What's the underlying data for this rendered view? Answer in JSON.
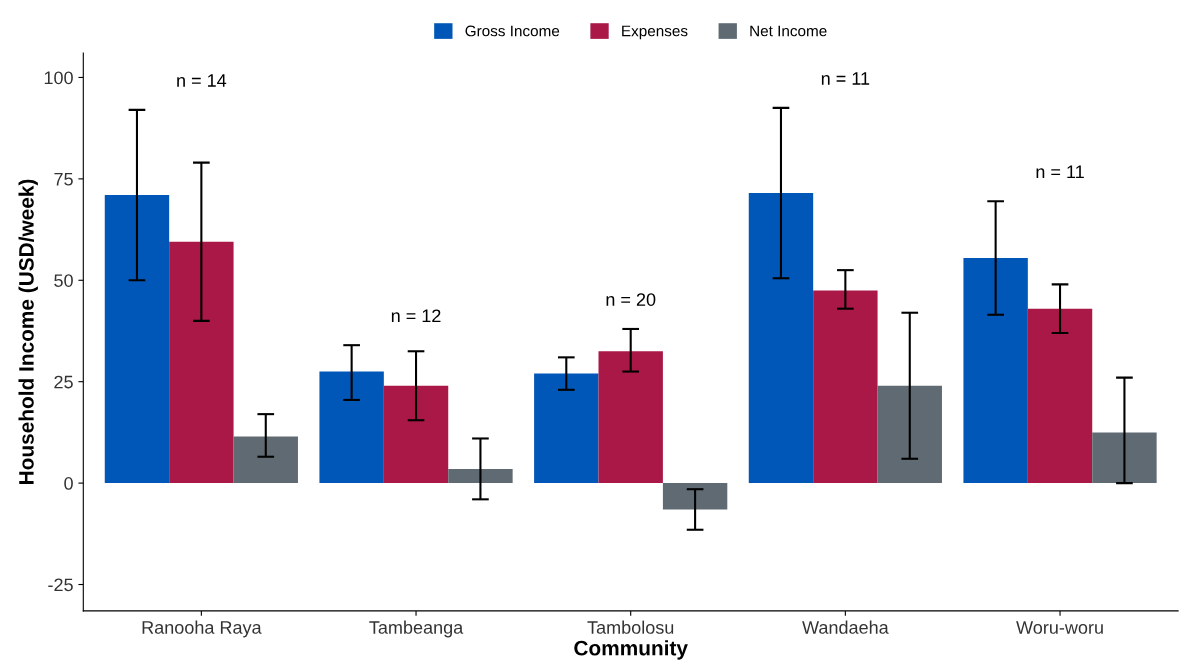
{
  "chart_data": {
    "type": "bar",
    "xlabel": "Community",
    "ylabel": "Household Income (USD/week)",
    "categories": [
      "Ranooha Raya",
      "Tambeanga",
      "Tambolosu",
      "Wandaeha",
      "Woru-woru"
    ],
    "series": [
      {
        "name": "Gross Income",
        "color": "#0057b7",
        "values": [
          71,
          27.5,
          27,
          71.5,
          55.5
        ],
        "errors": [
          [
            50,
            92
          ],
          [
            20.5,
            34
          ],
          [
            23,
            31
          ],
          [
            50.5,
            92.5
          ],
          [
            41.5,
            69.5
          ]
        ]
      },
      {
        "name": "Expenses",
        "color": "#a91846",
        "values": [
          59.5,
          24,
          32.5,
          47.5,
          43
        ],
        "errors": [
          [
            40,
            79
          ],
          [
            15.5,
            32.5
          ],
          [
            27.5,
            38
          ],
          [
            43,
            52.5
          ],
          [
            37,
            49
          ]
        ]
      },
      {
        "name": "Net Income",
        "color": "#5f6a72",
        "values": [
          11.5,
          3.5,
          -6.5,
          24,
          12.5
        ],
        "errors": [
          [
            6.5,
            17
          ],
          [
            -4,
            11
          ],
          [
            -11.5,
            -1.5
          ],
          [
            6,
            42
          ],
          [
            0,
            26
          ]
        ]
      }
    ],
    "annotations": [
      "n = 14",
      "n = 12",
      "n = 20",
      "n = 11",
      "n = 11"
    ],
    "ylim": [
      -31.5,
      106
    ],
    "yticks": [
      -25,
      0,
      25,
      50,
      75,
      100
    ],
    "grid": false,
    "legend": "top"
  }
}
